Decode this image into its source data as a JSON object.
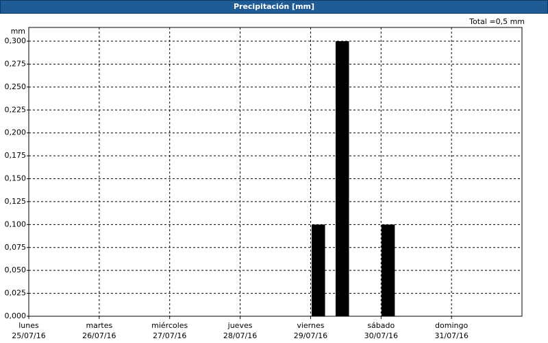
{
  "chart_data": {
    "type": "bar",
    "title": "Precipitación [mm]",
    "total": "Total =0,5 mm",
    "y_label": "mm",
    "x": [
      4.11,
      4.45,
      5.1
    ],
    "values": [
      0.1,
      0.3,
      0.1
    ],
    "color": "#000000",
    "xlim": [
      0,
      7
    ],
    "xticks": [
      {
        "value": 0,
        "label": "lunes"
      },
      {
        "value": 1,
        "label": "martes"
      },
      {
        "value": 2,
        "label": "miércoles"
      },
      {
        "value": 3,
        "label": "jueves"
      },
      {
        "value": 4,
        "label": "viernes"
      },
      {
        "value": 5,
        "label": "sábado"
      },
      {
        "value": 6,
        "label": "domingo"
      }
    ],
    "xtick_dates": [
      "25/07/16",
      "26/07/16",
      "27/07/16",
      "28/07/16",
      "29/07/16",
      "30/07/16",
      "31/07/16"
    ],
    "ylim": [
      0,
      0.315
    ],
    "yticks": [
      {
        "value": 0,
        "label": "0,000"
      },
      {
        "value": 0.025,
        "label": "0,025"
      },
      {
        "value": 0.05,
        "label": "0,050"
      },
      {
        "value": 0.075,
        "label": "0,075"
      },
      {
        "value": 0.1,
        "label": "0,100"
      },
      {
        "value": 0.125,
        "label": "0,125"
      },
      {
        "value": 0.15,
        "label": "0,150"
      },
      {
        "value": 0.175,
        "label": "0,175"
      },
      {
        "value": 0.2,
        "label": "0,200"
      },
      {
        "value": 0.225,
        "label": "0,225"
      },
      {
        "value": 0.25,
        "label": "0,250"
      },
      {
        "value": 0.275,
        "label": "0,275"
      },
      {
        "value": 0.3,
        "label": "0,300"
      }
    ],
    "grid": true
  }
}
